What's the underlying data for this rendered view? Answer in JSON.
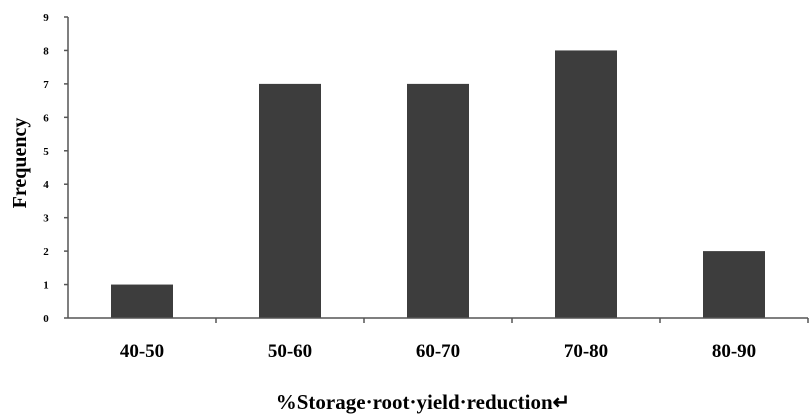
{
  "chart_data": {
    "type": "bar",
    "categories": [
      "40-50",
      "50-60",
      "60-70",
      "70-80",
      "80-90"
    ],
    "values": [
      1,
      7,
      7,
      8,
      2
    ],
    "title": "",
    "xlabel": "%Storage·root·yield·reduction↵",
    "ylabel": "Frequency",
    "ylim": [
      0,
      9
    ],
    "yticks": [
      "0",
      "1",
      "2",
      "3",
      "4",
      "5",
      "6",
      "7",
      "8",
      "9"
    ],
    "grid": false,
    "legend": "none",
    "bar_color": "#3d3d3d",
    "axis_color": "#555555"
  }
}
